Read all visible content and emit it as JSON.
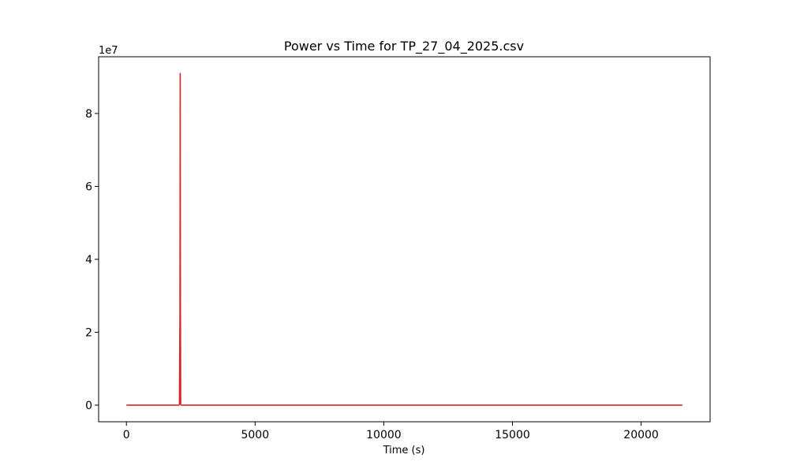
{
  "chart_data": {
    "type": "line",
    "title": "Power vs Time for TP_27_04_2025.csv",
    "xlabel": "Time (s)",
    "ylabel": "",
    "y_offset_label": "1e7",
    "xlim": [
      -1080,
      22680
    ],
    "ylim": [
      -4550000,
      95550000
    ],
    "x_ticks": [
      0,
      5000,
      10000,
      15000,
      20000
    ],
    "x_tick_labels": [
      "0",
      "5000",
      "10000",
      "15000",
      "20000"
    ],
    "y_ticks": [
      0,
      20000000,
      40000000,
      60000000,
      80000000
    ],
    "y_tick_labels": [
      "0",
      "2",
      "4",
      "6",
      "8"
    ],
    "grid": false,
    "series": [
      {
        "color": "#d62728",
        "x": [
          0,
          2040,
          2060,
          2080,
          2090,
          2100,
          2110,
          2130,
          21600
        ],
        "y": [
          0,
          0,
          200000,
          25000000,
          91000000,
          25000000,
          200000,
          0,
          0
        ]
      }
    ]
  }
}
